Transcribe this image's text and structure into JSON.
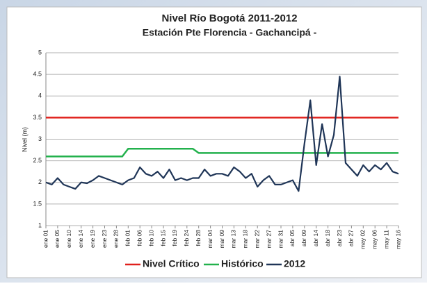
{
  "chart_data": {
    "type": "line",
    "title": "Nivel Río Bogotá 2011-2012",
    "subtitle": "Estación Pte Florencia - Gachancipá -",
    "y_label": "Nivel (m)",
    "categories": [
      "ene 01",
      null,
      "ene 05",
      null,
      "ene 10",
      null,
      "ene 14",
      null,
      "ene 19",
      null,
      "ene 23",
      null,
      "ene 28",
      null,
      "feb 01",
      null,
      "feb 06",
      null,
      "feb 10",
      null,
      "feb 15",
      null,
      "feb 19",
      null,
      "feb 24",
      null,
      "feb 28",
      null,
      "mar 04",
      null,
      "mar 09",
      null,
      "mar 13",
      null,
      "mar 18",
      null,
      "mar 22",
      null,
      "mar 27",
      null,
      "mar 31",
      null,
      "abr 05",
      null,
      "abr 09",
      null,
      "abr 14",
      null,
      "abr 18",
      null,
      "abr 23",
      null,
      "abr 27",
      null,
      "may 02",
      null,
      "may 06",
      null,
      "may 11",
      null,
      "may 16"
    ],
    "series": [
      {
        "name": "Nivel Crítico",
        "color": "#e0201c",
        "values": [
          3.5,
          3.5,
          3.5,
          3.5,
          3.5,
          3.5,
          3.5,
          3.5,
          3.5,
          3.5,
          3.5,
          3.5,
          3.5,
          3.5,
          3.5,
          3.5,
          3.5,
          3.5,
          3.5,
          3.5,
          3.5,
          3.5,
          3.5,
          3.5,
          3.5,
          3.5,
          3.5,
          3.5,
          3.5,
          3.5,
          3.5,
          3.5,
          3.5,
          3.5,
          3.5,
          3.5,
          3.5,
          3.5,
          3.5,
          3.5,
          3.5,
          3.5,
          3.5,
          3.5,
          3.5,
          3.5,
          3.5,
          3.5,
          3.5,
          3.5,
          3.5,
          3.5,
          3.5,
          3.5,
          3.5,
          3.5,
          3.5,
          3.5,
          3.5,
          3.5,
          3.5
        ]
      },
      {
        "name": "Histórico",
        "color": "#22b14c",
        "values": [
          2.6,
          2.6,
          2.6,
          2.6,
          2.6,
          2.6,
          2.6,
          2.6,
          2.6,
          2.6,
          2.6,
          2.6,
          2.6,
          2.6,
          2.78,
          2.78,
          2.78,
          2.78,
          2.78,
          2.78,
          2.78,
          2.78,
          2.78,
          2.78,
          2.78,
          2.78,
          2.68,
          2.68,
          2.68,
          2.68,
          2.68,
          2.68,
          2.68,
          2.68,
          2.68,
          2.68,
          2.68,
          2.68,
          2.68,
          2.68,
          2.68,
          2.68,
          2.68,
          2.68,
          2.68,
          2.68,
          2.68,
          2.68,
          2.68,
          2.68,
          2.68,
          2.68,
          2.68,
          2.68,
          2.68,
          2.68,
          2.68,
          2.68,
          2.68,
          2.68,
          2.68
        ]
      },
      {
        "name": "2012",
        "color": "#1f3557",
        "values": [
          2.0,
          1.95,
          2.1,
          1.95,
          1.9,
          1.85,
          2.0,
          1.98,
          2.05,
          2.15,
          2.1,
          2.05,
          2.0,
          1.95,
          2.05,
          2.1,
          2.35,
          2.2,
          2.15,
          2.25,
          2.1,
          2.3,
          2.05,
          2.1,
          2.05,
          2.1,
          2.1,
          2.3,
          2.15,
          2.2,
          2.2,
          2.15,
          2.35,
          2.25,
          2.1,
          2.2,
          1.9,
          2.05,
          2.15,
          1.95,
          1.95,
          2.0,
          2.05,
          1.8,
          2.9,
          3.9,
          2.4,
          3.35,
          2.6,
          3.1,
          4.45,
          2.45,
          2.3,
          2.15,
          2.4,
          2.25,
          2.4,
          2.3,
          2.45,
          2.25,
          2.2
        ]
      }
    ],
    "ylim": [
      1,
      5
    ],
    "yticks": [
      1,
      1.5,
      2,
      2.5,
      3,
      3.5,
      4,
      4.5,
      5
    ],
    "grid": true,
    "legend": "bottom"
  }
}
